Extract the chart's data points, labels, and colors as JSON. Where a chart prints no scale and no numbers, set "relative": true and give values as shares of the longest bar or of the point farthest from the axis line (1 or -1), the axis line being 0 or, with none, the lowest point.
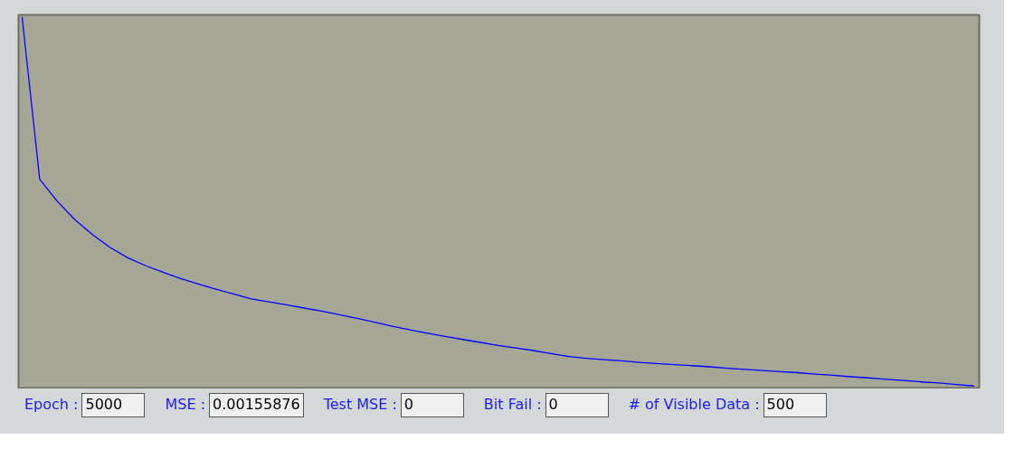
{
  "chart_data": {
    "type": "line",
    "relative": true,
    "categories": [
      null,
      null,
      null,
      null,
      null,
      null,
      null,
      null,
      null,
      null,
      null,
      null,
      null,
      null,
      null,
      null,
      null,
      null,
      null,
      null,
      null,
      null,
      null,
      null,
      null,
      null,
      null,
      null,
      null,
      null,
      null,
      null,
      null,
      null,
      null,
      null,
      null,
      null,
      null,
      null,
      null,
      null,
      null,
      null,
      null,
      null,
      null,
      null,
      null,
      null,
      null,
      null,
      null,
      null,
      null
    ],
    "series": [
      {
        "color": "#0000ff",
        "values": [
          1.0,
          0.56,
          0.5,
          0.45,
          0.41,
          0.375,
          0.347,
          0.326,
          0.308,
          0.291,
          0.276,
          0.262,
          0.249,
          0.236,
          0.228,
          0.22,
          0.211,
          0.203,
          0.193,
          0.183,
          0.173,
          0.162,
          0.152,
          0.143,
          0.134,
          0.126,
          0.118,
          0.11,
          0.103,
          0.096,
          0.088,
          0.08,
          0.075,
          0.071,
          0.068,
          0.064,
          0.061,
          0.058,
          0.055,
          0.052,
          0.048,
          0.045,
          0.042,
          0.039,
          0.036,
          0.032,
          0.029,
          0.025,
          0.022,
          0.018,
          0.015,
          0.011,
          0.008,
          0.004,
          0.0
        ]
      }
    ],
    "grid": false,
    "annotations": [
      "Epoch :",
      "5000",
      "MSE :",
      "0.00155876",
      "Test MSE :",
      "0",
      "Bit Fail  :",
      "0",
      "# of Visible Data :",
      "500"
    ]
  }
}
